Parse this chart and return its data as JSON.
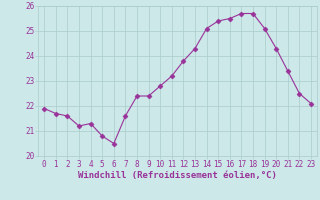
{
  "x": [
    0,
    1,
    2,
    3,
    4,
    5,
    6,
    7,
    8,
    9,
    10,
    11,
    12,
    13,
    14,
    15,
    16,
    17,
    18,
    19,
    20,
    21,
    22,
    23
  ],
  "y": [
    21.9,
    21.7,
    21.6,
    21.2,
    21.3,
    20.8,
    20.5,
    21.6,
    22.4,
    22.4,
    22.8,
    23.2,
    23.8,
    24.3,
    25.1,
    25.4,
    25.5,
    25.7,
    25.7,
    25.1,
    24.3,
    23.4,
    22.5,
    22.1
  ],
  "line_color": "#993399",
  "marker": "D",
  "marker_size": 2.5,
  "bg_color": "#cce8e8",
  "grid_color": "#aacccc",
  "xlabel": "Windchill (Refroidissement éolien,°C)",
  "ylabel": "",
  "ylim": [
    20,
    26
  ],
  "xlim_min": -0.5,
  "xlim_max": 23.5,
  "yticks": [
    20,
    21,
    22,
    23,
    24,
    25,
    26
  ],
  "xticks": [
    0,
    1,
    2,
    3,
    4,
    5,
    6,
    7,
    8,
    9,
    10,
    11,
    12,
    13,
    14,
    15,
    16,
    17,
    18,
    19,
    20,
    21,
    22,
    23
  ],
  "tick_color": "#993399",
  "label_color": "#993399",
  "tick_fontsize": 5.5,
  "xlabel_fontsize": 6.5
}
